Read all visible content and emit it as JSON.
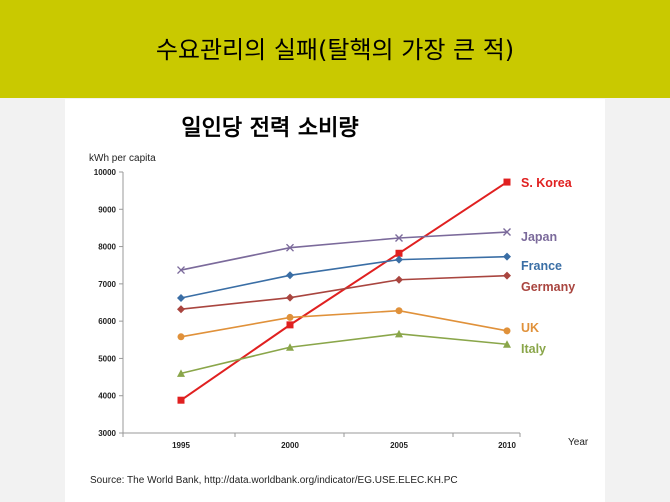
{
  "slide": {
    "title": "수요관리의 실패(탈핵의 가장 큰 적)",
    "source": "Source: The World Bank, http://data.worldbank.org/indicator/EG.USE.ELEC.KH.PC"
  },
  "colors": {
    "title_bar": "#c9c900",
    "S. Korea": "#e02020",
    "Japan": "#7b6a9b",
    "France": "#3a6ea5",
    "Germany": "#a9453f",
    "UK": "#e0913a",
    "Italy": "#8aa64a"
  },
  "chart_data": {
    "type": "line",
    "title": "일인당 전력 소비량",
    "ylabel": "kWh per capita",
    "xlabel": "Year",
    "x": [
      1995,
      2000,
      2005,
      2010
    ],
    "x_tick_labels": [
      "1995",
      "2000",
      "2005",
      "2010"
    ],
    "ylim": [
      3000,
      10000
    ],
    "y_ticks": [
      3000,
      4000,
      5000,
      6000,
      7000,
      8000,
      9000,
      10000
    ],
    "y_tick_labels": [
      "3000",
      "4000",
      "5000",
      "6000",
      "7000",
      "8000",
      "9000",
      "10000"
    ],
    "grid": false,
    "legend": "right, end of lines",
    "series": [
      {
        "name": "S. Korea",
        "marker": "square",
        "values": [
          3880,
          5900,
          7820,
          9730
        ]
      },
      {
        "name": "Japan",
        "marker": "x",
        "values": [
          7370,
          7970,
          8230,
          8390
        ]
      },
      {
        "name": "France",
        "marker": "diamond",
        "values": [
          6620,
          7230,
          7650,
          7730
        ]
      },
      {
        "name": "Germany",
        "marker": "diamond",
        "values": [
          6320,
          6630,
          7110,
          7220
        ]
      },
      {
        "name": "UK",
        "marker": "circle",
        "values": [
          5580,
          6100,
          6280,
          5740
        ]
      },
      {
        "name": "Italy",
        "marker": "triangle",
        "values": [
          4600,
          5300,
          5660,
          5380
        ]
      }
    ]
  }
}
